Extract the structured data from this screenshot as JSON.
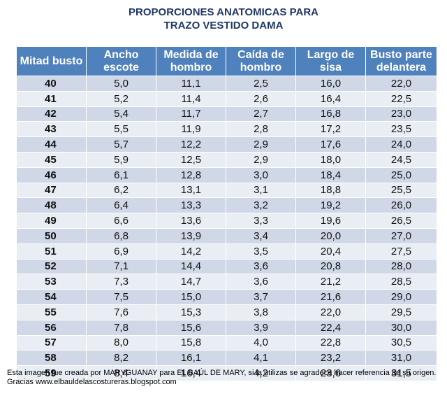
{
  "title": {
    "line1": "PROPORCIONES ANATOMICAS PARA",
    "line2": "TRAZO VESTIDO DAMA"
  },
  "table": {
    "headers": [
      "Mitad busto",
      "Ancho escote",
      "Medida de hombro",
      "Caída de hombro",
      "Largo de sisa",
      "Busto parte delantera"
    ],
    "rows": [
      [
        "40",
        "5,0",
        "11,1",
        "2,5",
        "16,0",
        "22,0"
      ],
      [
        "41",
        "5,2",
        "11,4",
        "2,6",
        "16,4",
        "22,5"
      ],
      [
        "42",
        "5,4",
        "11,7",
        "2,7",
        "16,8",
        "23,0"
      ],
      [
        "43",
        "5,5",
        "11,9",
        "2,8",
        "17,2",
        "23,5"
      ],
      [
        "44",
        "5,7",
        "12,2",
        "2,9",
        "17,6",
        "24,0"
      ],
      [
        "45",
        "5,9",
        "12,5",
        "2,9",
        "18,0",
        "24,5"
      ],
      [
        "46",
        "6,1",
        "12,8",
        "3,0",
        "18,4",
        "25,0"
      ],
      [
        "47",
        "6,2",
        "13,1",
        "3,1",
        "18,8",
        "25,5"
      ],
      [
        "48",
        "6,4",
        "13,3",
        "3,2",
        "19,2",
        "26,0"
      ],
      [
        "49",
        "6,6",
        "13,6",
        "3,3",
        "19,6",
        "26,5"
      ],
      [
        "50",
        "6,8",
        "13,9",
        "3,4",
        "20,0",
        "27,0"
      ],
      [
        "51",
        "6,9",
        "14,2",
        "3,5",
        "20,4",
        "27,5"
      ],
      [
        "52",
        "7,1",
        "14,4",
        "3,6",
        "20,8",
        "28,0"
      ],
      [
        "53",
        "7,3",
        "14,7",
        "3,6",
        "21,2",
        "28,5"
      ],
      [
        "54",
        "7,5",
        "15,0",
        "3,7",
        "21,6",
        "29,0"
      ],
      [
        "55",
        "7,6",
        "15,3",
        "3,8",
        "22,0",
        "29,5"
      ],
      [
        "56",
        "7,8",
        "15,6",
        "3,9",
        "22,4",
        "30,0"
      ],
      [
        "57",
        "8,0",
        "15,8",
        "4,0",
        "22,8",
        "30,5"
      ],
      [
        "58",
        "8,2",
        "16,1",
        "4,1",
        "23,2",
        "31,0"
      ],
      [
        "59",
        "8,4",
        "16,4",
        "4,2",
        "23,6",
        "31,5"
      ]
    ]
  },
  "credit": {
    "line1": "Esta imagen fue creada por MARYGUANAY para EL BAÚL DE MARY, si la utilizas se agradece hacer referencia de su origen.",
    "line2": "Gracias www.elbauldelascostureras.blogspot.com"
  },
  "colors": {
    "header_bg": "#4f81bd",
    "row_odd": "#d0d8e8",
    "row_even": "#e9edf4",
    "title": "#1f3864"
  }
}
